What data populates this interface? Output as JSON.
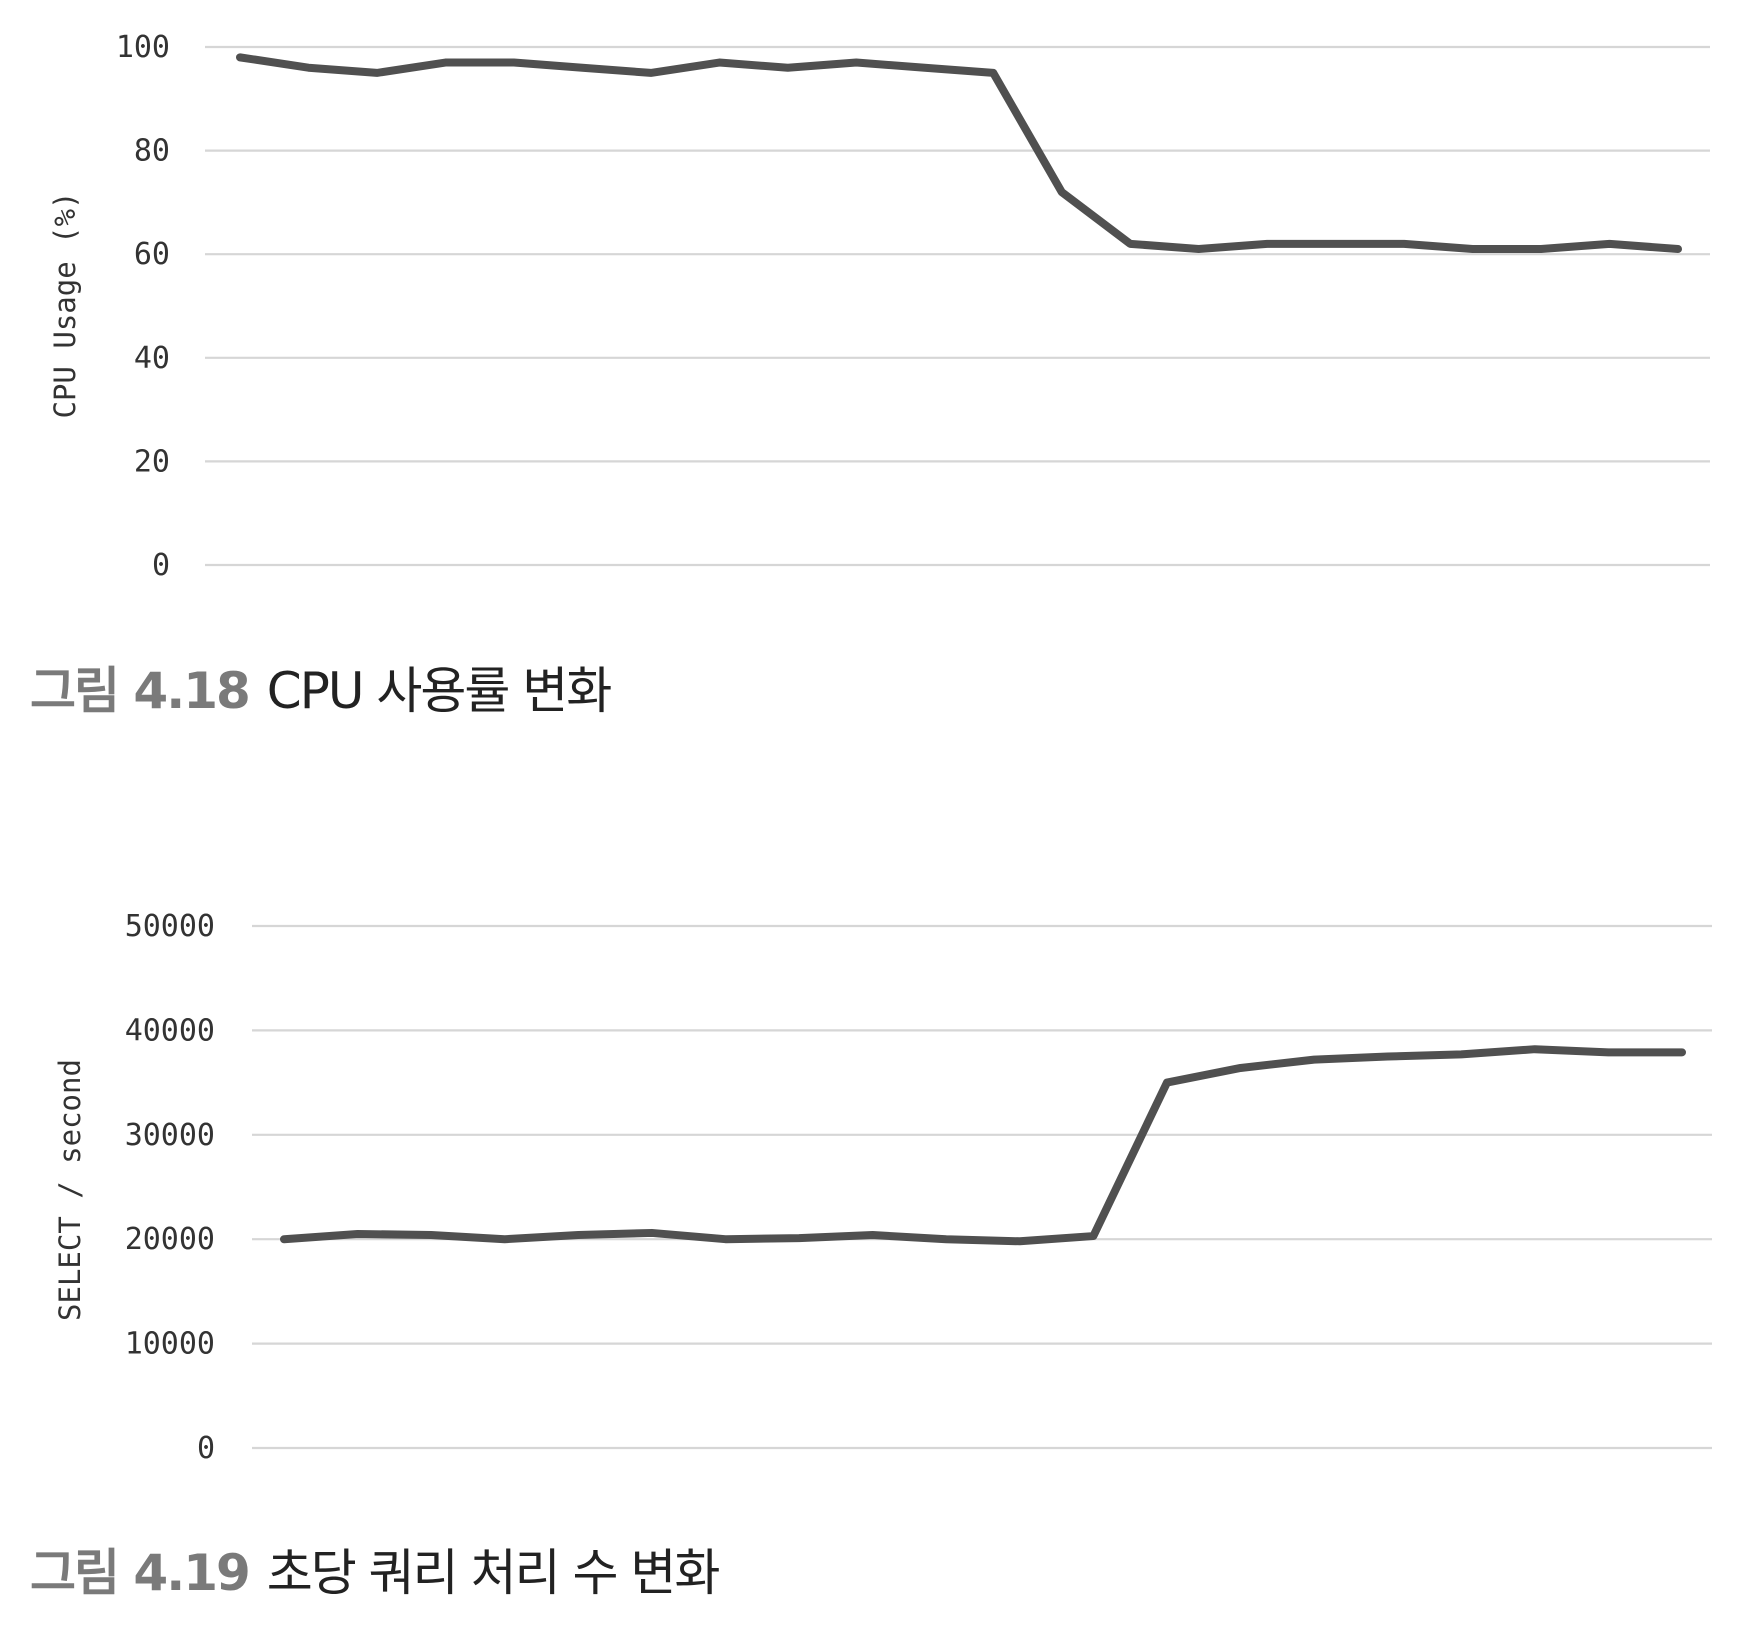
{
  "chart_data": [
    {
      "type": "line",
      "ylabel": "CPU Usage (%)",
      "ylim": [
        0,
        100
      ],
      "yticks": [
        "0",
        "20",
        "40",
        "60",
        "80",
        "100"
      ],
      "grid": true,
      "series": [
        {
          "values": [
            98,
            96,
            95,
            97,
            97,
            96,
            95,
            97,
            96,
            97,
            96,
            95,
            72,
            62,
            61,
            62,
            62,
            62,
            61,
            61,
            62,
            61
          ]
        }
      ],
      "caption": {
        "number": "그림 4.18",
        "text": "CPU 사용률 변화"
      }
    },
    {
      "type": "line",
      "ylabel": "SELECT / second",
      "ylim": [
        0,
        50000
      ],
      "yticks": [
        "0",
        "10000",
        "20000",
        "30000",
        "40000",
        "50000"
      ],
      "grid": true,
      "series": [
        {
          "values": [
            20000,
            20500,
            20400,
            20000,
            20400,
            20600,
            20000,
            20100,
            20400,
            20000,
            19800,
            20300,
            35000,
            36400,
            37200,
            37500,
            37700,
            38200,
            37900,
            37900
          ]
        }
      ],
      "caption": {
        "number": "그림 4.19",
        "text": "초당 쿼리 처리 수 변화"
      }
    }
  ],
  "colors": {
    "line": "#505050",
    "grid": "#d6d6d6",
    "caption_number": "#7a7a7a"
  }
}
